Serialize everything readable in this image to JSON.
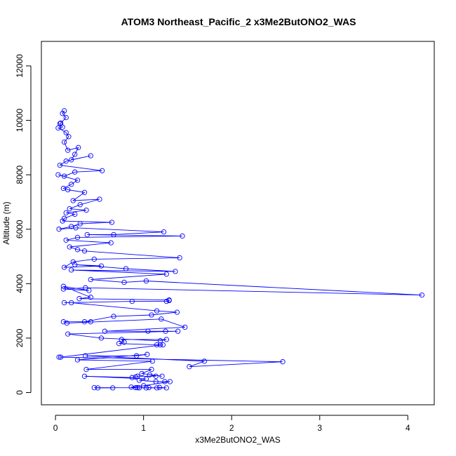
{
  "chart_data": {
    "type": "line",
    "title": "ATOM3 Northeast_Pacific_2 x3Me2ButONO2_WAS",
    "xlabel": "x3Me2ButONO2_WAS",
    "ylabel": "Altitude (m)",
    "xlim": [
      -0.16,
      4.3
    ],
    "ylim": [
      -450,
      12900
    ],
    "x_ticks": [
      0,
      1,
      2,
      3,
      4
    ],
    "x_tick_labels": [
      "0",
      "1",
      "2",
      "3",
      "4"
    ],
    "y_ticks": [
      0,
      2000,
      4000,
      6000,
      8000,
      10000,
      12000
    ],
    "y_tick_labels": [
      "0",
      "2000",
      "4000",
      "6000",
      "8000",
      "10000",
      "12000"
    ],
    "grid": false,
    "legend": "none",
    "series_color": "#0000ff",
    "series": [
      {
        "points": [
          [
            0.1,
            10350
          ],
          [
            0.08,
            10250
          ],
          [
            0.12,
            10100
          ],
          [
            0.06,
            9900
          ],
          [
            0.05,
            9880
          ],
          [
            0.08,
            9750
          ],
          [
            0.03,
            9720
          ],
          [
            0.12,
            9550
          ],
          [
            0.15,
            9400
          ],
          [
            0.1,
            9200
          ],
          [
            0.14,
            8900
          ],
          [
            0.26,
            9000
          ],
          [
            0.22,
            8750
          ],
          [
            0.18,
            8550
          ],
          [
            0.4,
            8700
          ],
          [
            0.12,
            8500
          ],
          [
            0.05,
            8350
          ],
          [
            0.53,
            8150
          ],
          [
            0.22,
            8100
          ],
          [
            0.1,
            7950
          ],
          [
            0.03,
            8000
          ],
          [
            0.25,
            7800
          ],
          [
            0.18,
            7650
          ],
          [
            0.09,
            7500
          ],
          [
            0.14,
            7450
          ],
          [
            0.33,
            7350
          ],
          [
            0.2,
            7050
          ],
          [
            0.5,
            7100
          ],
          [
            0.28,
            6900
          ],
          [
            0.16,
            6750
          ],
          [
            0.35,
            6700
          ],
          [
            0.12,
            6600
          ],
          [
            0.22,
            6550
          ],
          [
            0.1,
            6400
          ],
          [
            0.08,
            6300
          ],
          [
            0.64,
            6250
          ],
          [
            0.28,
            6200
          ],
          [
            0.18,
            6100
          ],
          [
            0.04,
            6000
          ],
          [
            0.23,
            6050
          ],
          [
            1.23,
            5900
          ],
          [
            0.66,
            5800
          ],
          [
            0.36,
            5800
          ],
          [
            1.44,
            5750
          ],
          [
            0.25,
            5700
          ],
          [
            0.12,
            5600
          ],
          [
            0.63,
            5500
          ],
          [
            0.16,
            5350
          ],
          [
            0.25,
            5250
          ],
          [
            0.33,
            5200
          ],
          [
            1.41,
            4950
          ],
          [
            0.44,
            4900
          ],
          [
            0.2,
            4800
          ],
          [
            0.1,
            4600
          ],
          [
            0.52,
            4650
          ],
          [
            0.22,
            4700
          ],
          [
            0.8,
            4550
          ],
          [
            1.36,
            4450
          ],
          [
            0.18,
            4500
          ],
          [
            1.26,
            4350
          ],
          [
            0.4,
            4150
          ],
          [
            0.78,
            4050
          ],
          [
            1.03,
            4100
          ],
          [
            4.16,
            3580
          ],
          [
            0.34,
            3850
          ],
          [
            0.09,
            3800
          ],
          [
            0.38,
            3750
          ],
          [
            0.09,
            3900
          ],
          [
            0.4,
            3500
          ],
          [
            0.27,
            3450
          ],
          [
            1.29,
            3400
          ],
          [
            1.29,
            3380
          ],
          [
            1.26,
            3350
          ],
          [
            0.87,
            3350
          ],
          [
            0.1,
            3300
          ],
          [
            0.18,
            3300
          ],
          [
            1.15,
            3000
          ],
          [
            1.38,
            2950
          ],
          [
            1.09,
            2850
          ],
          [
            0.66,
            2800
          ],
          [
            0.33,
            2600
          ],
          [
            0.4,
            2600
          ],
          [
            0.09,
            2600
          ],
          [
            0.13,
            2550
          ],
          [
            1.2,
            2700
          ],
          [
            1.47,
            2400
          ],
          [
            0.56,
            2250
          ],
          [
            1.05,
            2250
          ],
          [
            1.25,
            2250
          ],
          [
            1.39,
            2250
          ],
          [
            0.14,
            2150
          ],
          [
            0.52,
            2000
          ],
          [
            1.19,
            1900
          ],
          [
            1.26,
            1950
          ],
          [
            0.75,
            1950
          ],
          [
            0.78,
            1850
          ],
          [
            0.72,
            1800
          ],
          [
            1.15,
            1750
          ],
          [
            1.19,
            1750
          ],
          [
            1.22,
            1750
          ],
          [
            0.06,
            1300
          ],
          [
            0.04,
            1300
          ],
          [
            2.58,
            1130
          ],
          [
            1.52,
            950
          ],
          [
            1.69,
            1150
          ],
          [
            0.34,
            1350
          ],
          [
            0.92,
            1350
          ],
          [
            1.04,
            1400
          ],
          [
            0.25,
            1200
          ],
          [
            1.1,
            1150
          ],
          [
            0.35,
            850
          ],
          [
            1.09,
            850
          ],
          [
            0.98,
            700
          ],
          [
            1.21,
            600
          ],
          [
            1.07,
            650
          ],
          [
            1.14,
            600
          ],
          [
            0.93,
            600
          ],
          [
            0.91,
            570
          ],
          [
            0.87,
            550
          ],
          [
            0.33,
            600
          ],
          [
            1.03,
            500
          ],
          [
            0.95,
            450
          ],
          [
            1.14,
            400
          ],
          [
            1.24,
            400
          ],
          [
            1.3,
            400
          ],
          [
            1.0,
            250
          ],
          [
            0.86,
            200
          ],
          [
            0.91,
            180
          ],
          [
            0.93,
            180
          ],
          [
            0.95,
            170
          ],
          [
            1.03,
            170
          ],
          [
            1.06,
            180
          ],
          [
            1.15,
            170
          ],
          [
            1.18,
            190
          ],
          [
            1.26,
            170
          ],
          [
            0.44,
            180
          ],
          [
            0.48,
            170
          ],
          [
            0.65,
            170
          ]
        ]
      }
    ]
  }
}
